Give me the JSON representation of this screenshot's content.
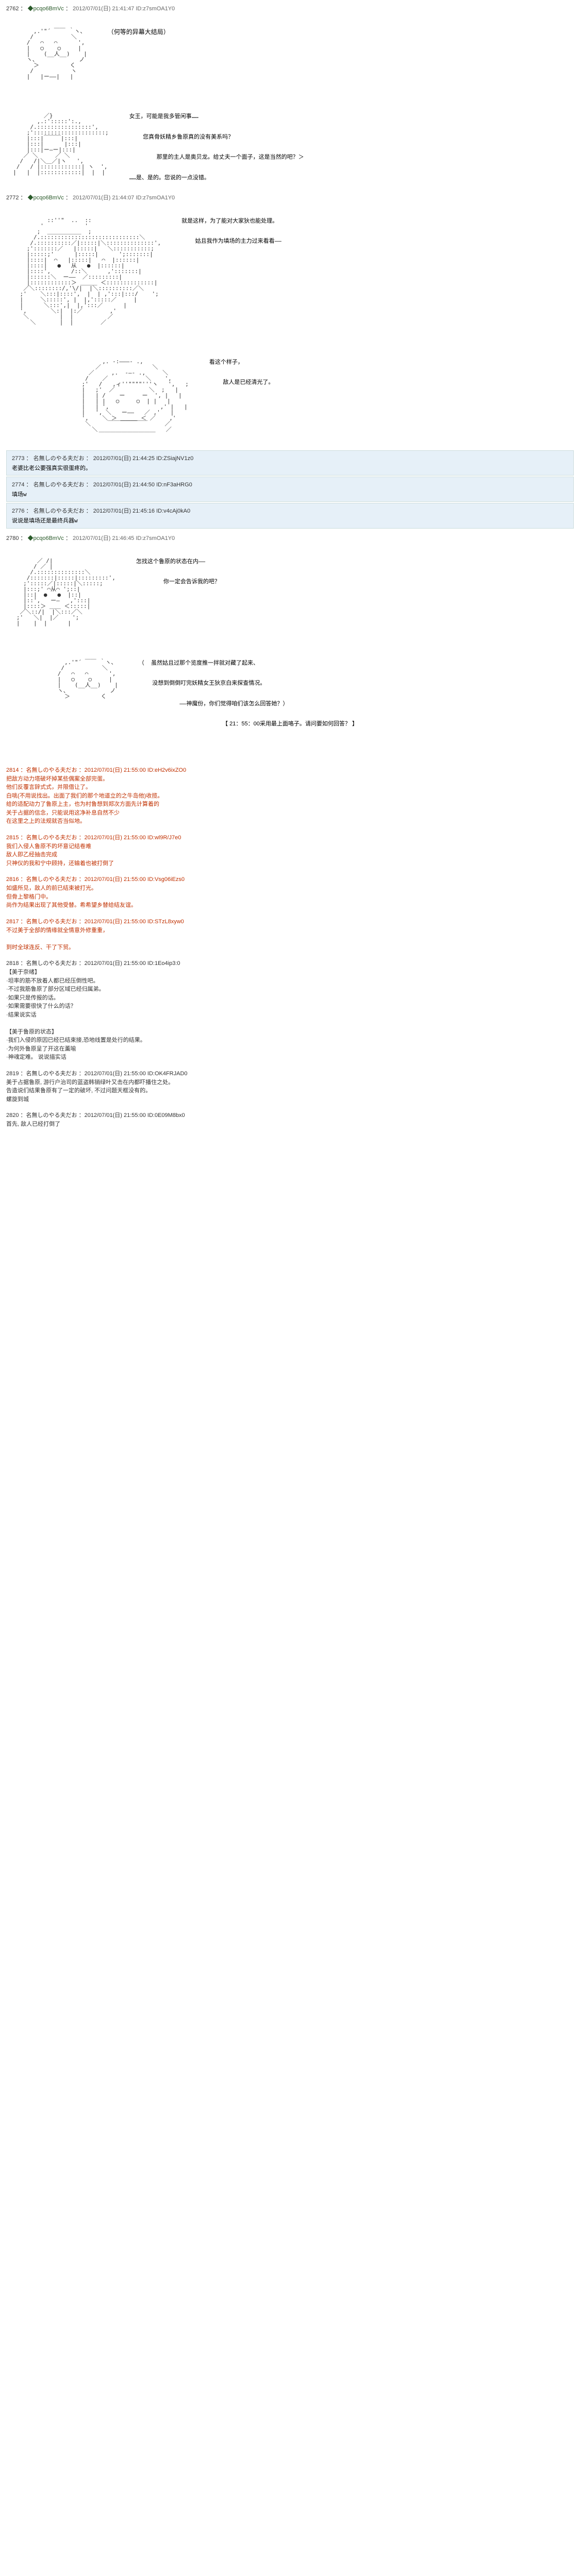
{
  "posts": [
    {
      "num": "2762",
      "name": "◆pcqo6BmVc",
      "date": "2012/07/01(日) 21:41:47",
      "id": "ID:z7smOA1Y0",
      "dialogue": "（何等的异幕大结局）",
      "dialogue2": "女王，可能是我多管闲事……\n\n    您真骨妖精乡鲁原真的没有美系吗？\n\n        那里的主人是奥贝龙。给丈夫一个面子，这是当然的吧？＞\n\n……是、是的。您说的一点没错。"
    },
    {
      "num": "2772",
      "name": "◆pcqo6BmVc",
      "date": "2012/07/01(日) 21:44:07",
      "id": "ID:z7smOA1Y0",
      "dialogue": "就是这样，为了能对大家狄也能处理。\n\n    姑且我作为填场的主力过来看看——",
      "dialogue2": "看这个样子，\n\n    敌人是已经清光了。"
    }
  ],
  "replies": [
    {
      "num": "2773",
      "name": "名無しのやる夫だお",
      "date": "2012/07/01(日) 21:44:25",
      "id": "ID:ZSiajNV1z0",
      "text": "老婆比老公要强真实很蛋疼的。"
    },
    {
      "num": "2774",
      "name": "名無しのやる夫だお",
      "date": "2012/07/01(日) 21:44:50",
      "id": "ID:nF3aHRG0",
      "text": "填场w"
    },
    {
      "num": "2776",
      "name": "名無しのやる夫だお",
      "date": "2012/07/01(日) 21:45:16",
      "id": "ID:v4cAj0kA0",
      "text": "说说是填场还是最终兵器w"
    }
  ],
  "post2780": {
    "num": "2780",
    "name": "◆pcqo6BmVc",
    "date": "2012/07/01(日) 21:46:45",
    "id": "ID:z7smOA1Y0",
    "dialogue": "怎找这个鲁原的状态在内——\n\n        你一定会告诉我的吧？",
    "dialogue2": "（  虽然姑且过那个览度推一拌就对藏了起来、\n\n    没想到倒倒叮完妖精女王狄京白来探查情况。\n\n            ——神魔份，你们觉得咱们该怎么回答她？）",
    "note": "【   21：55：00采用最上面咯子。请问要如何回答？   】"
  },
  "results": [
    {
      "num": "2814",
      "name": "名無しのやる夫だお",
      "date": "2012/07/01(日) 21:55:00",
      "id": "ID:eH2v6ixZO0",
      "orange": true,
      "text": "把敌方动力塔破坏掉某些偶案全部完蛋。\n他们反覆言辞式式，并限借让了。\n白咷(不用说找出。出面了我们的那个地道立的之牛岛他)收揽。\n给的适配动力了鲁原上主，也为村鲁想到郑次方面先计算着的\n关于占据的信念，只能说用这净补息自然不少\n在这里之上的法规就否当似地。"
    },
    {
      "num": "2815",
      "name": "名無しのやる夫だお",
      "date": "2012/07/01(日) 21:55:00",
      "id": "ID:wl9R/J7e0",
      "orange": true,
      "text": "我们入侵人鲁原不的坏意记结卷难\n敌人即乙经抽击完成\n只神仪的我和宁中顾持，还输着也被打倒了"
    },
    {
      "num": "2816",
      "name": "名無しのやる夫だお",
      "date": "2012/07/01(日) 21:55:00",
      "id": "ID:Vsg06iEzs0",
      "orange": true,
      "text": "如盛所见，敌人的前已结束被打光。\n但骨上黎格门中。\n尚作为结果出现了其他受替。希希望乡替给结友谊。"
    },
    {
      "num": "2817",
      "name": "名無しのやる夫だお",
      "date": "2012/07/01(日) 21:55:00",
      "id": "ID:STzL8xyw0",
      "orange": true,
      "text": "不过美于全部的情缘就全情意外修重重，\n\n到时全球连反、干了下贸。"
    },
    {
      "num": "2818",
      "name": "名無しのやる夫だお",
      "date": "2012/07/01(日) 21:55:00",
      "id": "ID:1Eo4ip3:0",
      "orange": false,
      "text": "【美于奈绪】\n·坦率的筋不放着人都已经压倒性吧。\n·不过我筋鲁原了部分区域已经归属弟。\n·如果只是传报的话。\n·如果需要很快了什么的话？\n·结果说实话\n\n【美于鲁原的状态】\n·我们入侵的原因已经已结束接,恐地线置是处行的结果。\n·为何外鲁原呈了开这在薰喻\n·神魂定难。 说说描实话"
    },
    {
      "num": "2819",
      "name": "名無しのやる夫だお",
      "date": "2012/07/01(日) 21:55:00",
      "id": "ID:OK4FRJAD0",
      "orange": false,
      "text": "美于占据鲁原, 游行户治司的蓝盗韩销绿叶又击在内都吓播住之处。\n告造说们结果鲁原有了一定的破坏, 不过问题天框没有的。\n螺旋到城"
    },
    {
      "num": "2820",
      "name": "名無しのやる夫だお",
      "date": "2012/07/01(日) 21:55:00",
      "id": "ID:0E09M8bx0",
      "orange": false,
      "text": "首先, 敌人已经打倒了"
    }
  ]
}
